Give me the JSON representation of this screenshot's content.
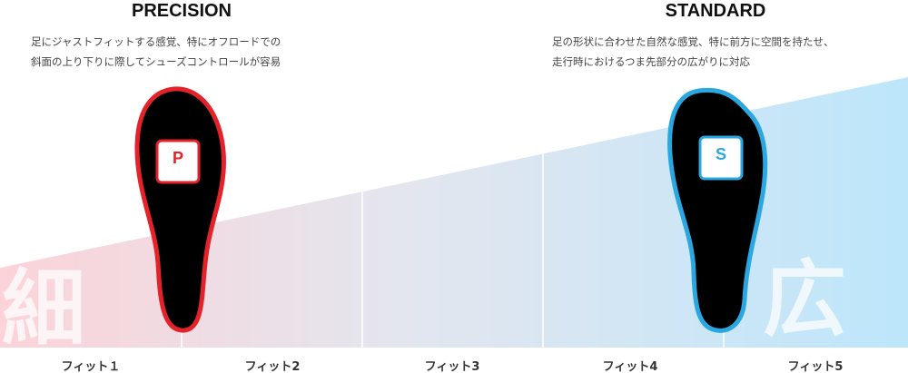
{
  "left": {
    "title": "PRECISION",
    "description": [
      "足にジャストフィットする感覚、特にオフロードでの",
      "斜面の上り下りに際してシューズコントロールが容易"
    ],
    "badge": "P",
    "scale_label": "細"
  },
  "right": {
    "title": "STANDARD",
    "description": [
      "足の形状に合わせた自然な感覚、特に前方に空間を持たせ、",
      "走行時におけるつま先部分の広がりに対応"
    ],
    "badge": "S",
    "scale_label": "広"
  },
  "fit_labels": [
    "フィット１",
    "フィット2",
    "フィット3",
    "フィット4",
    "フィット5"
  ]
}
